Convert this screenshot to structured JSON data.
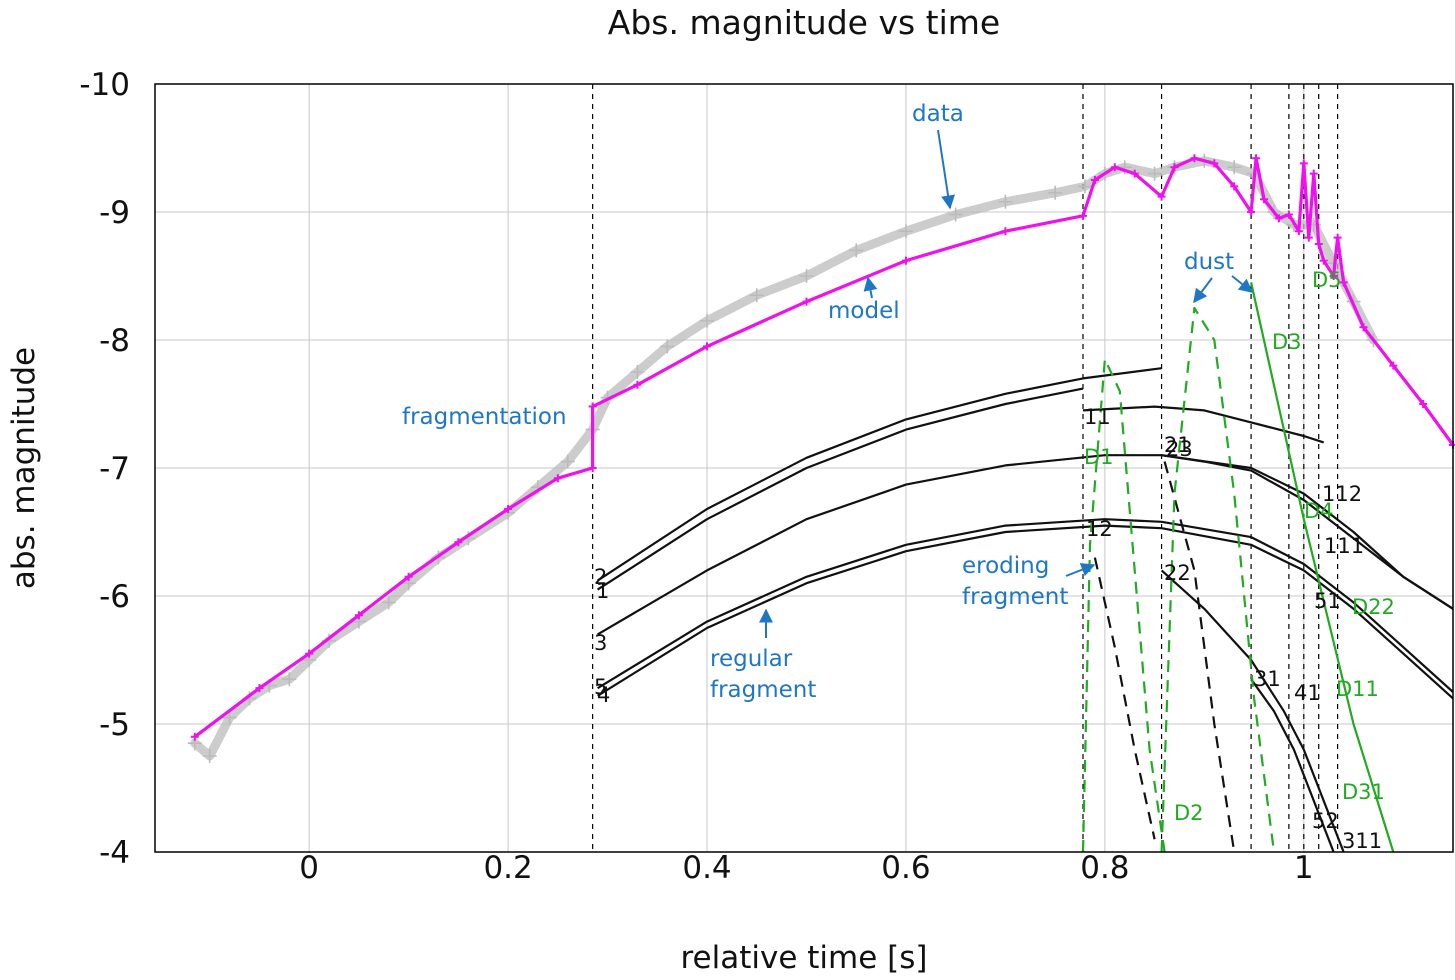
{
  "chart_data": {
    "type": "line",
    "title": "Abs. magnitude vs time",
    "xlabel": "relative time [s]",
    "ylabel": "abs. magnitude",
    "xlim": [
      -0.155,
      1.15
    ],
    "ylim": [
      -4,
      -10
    ],
    "y_inverted": true,
    "grid": true,
    "xticks": [
      0,
      0.2,
      0.4,
      0.6,
      0.8,
      1
    ],
    "xtick_labels": [
      "0",
      "0.2",
      "0.4",
      "0.6",
      "0.8",
      "1"
    ],
    "yticks": [
      -4,
      -5,
      -6,
      -7,
      -8,
      -9,
      -10
    ],
    "ytick_labels": [
      "-4",
      "-5",
      "-6",
      "-7",
      "-8",
      "-9",
      "-10"
    ],
    "fragmentation_times": [
      0.285,
      0.778,
      0.857,
      0.947,
      0.985,
      1.0,
      1.015,
      1.034
    ],
    "series": [
      {
        "role": "data",
        "color": "#bbbbbb",
        "style": "plus-markers",
        "x": [
          -0.115,
          -0.1,
          -0.08,
          -0.06,
          -0.04,
          -0.02,
          0.0,
          0.02,
          0.05,
          0.08,
          0.1,
          0.13,
          0.16,
          0.2,
          0.23,
          0.26,
          0.285,
          0.3,
          0.33,
          0.36,
          0.4,
          0.45,
          0.5,
          0.55,
          0.6,
          0.65,
          0.7,
          0.75,
          0.78,
          0.8,
          0.82,
          0.85,
          0.87,
          0.9,
          0.93,
          0.95,
          0.97,
          0.99,
          1.01,
          1.03,
          1.05,
          1.07
        ],
        "y": [
          -4.85,
          -4.75,
          -5.05,
          -5.2,
          -5.3,
          -5.35,
          -5.5,
          -5.65,
          -5.8,
          -5.95,
          -6.1,
          -6.3,
          -6.45,
          -6.65,
          -6.85,
          -7.05,
          -7.3,
          -7.55,
          -7.75,
          -7.95,
          -8.15,
          -8.35,
          -8.5,
          -8.7,
          -8.85,
          -8.98,
          -9.08,
          -9.15,
          -9.2,
          -9.3,
          -9.35,
          -9.3,
          -9.35,
          -9.4,
          -9.35,
          -9.3,
          -9.0,
          -8.9,
          -8.9,
          -8.6,
          -8.3,
          -8.0
        ]
      },
      {
        "role": "model",
        "color": "#ee11ee",
        "x": [
          -0.115,
          -0.05,
          0.0,
          0.05,
          0.1,
          0.15,
          0.2,
          0.25,
          0.285,
          0.285,
          0.33,
          0.4,
          0.5,
          0.6,
          0.7,
          0.778,
          0.79,
          0.81,
          0.83,
          0.857,
          0.87,
          0.89,
          0.91,
          0.93,
          0.947,
          0.952,
          0.96,
          0.975,
          0.985,
          0.995,
          1.0,
          1.005,
          1.01,
          1.015,
          1.02,
          1.03,
          1.034,
          1.04,
          1.06,
          1.09,
          1.12,
          1.15
        ],
        "y": [
          -4.9,
          -5.28,
          -5.55,
          -5.85,
          -6.15,
          -6.42,
          -6.68,
          -6.92,
          -7.0,
          -7.48,
          -7.65,
          -7.95,
          -8.3,
          -8.62,
          -8.85,
          -8.97,
          -9.25,
          -9.35,
          -9.3,
          -9.12,
          -9.35,
          -9.42,
          -9.38,
          -9.2,
          -9.0,
          -9.42,
          -9.1,
          -8.95,
          -8.98,
          -8.85,
          -9.38,
          -8.8,
          -9.3,
          -8.75,
          -8.62,
          -8.5,
          -8.8,
          -8.45,
          -8.1,
          -7.8,
          -7.5,
          -7.18
        ]
      },
      {
        "role": "fragment-1",
        "color": "#111111",
        "x": [
          0.29,
          0.4,
          0.5,
          0.6,
          0.7,
          0.778
        ],
        "y": [
          -6.05,
          -6.6,
          -7.0,
          -7.3,
          -7.5,
          -7.62
        ]
      },
      {
        "role": "fragment-2",
        "color": "#111111",
        "x": [
          0.29,
          0.4,
          0.5,
          0.6,
          0.7,
          0.778,
          0.857
        ],
        "y": [
          -6.12,
          -6.68,
          -7.08,
          -7.38,
          -7.58,
          -7.7,
          -7.78
        ]
      },
      {
        "role": "fragment-3",
        "color": "#111111",
        "x": [
          0.29,
          0.4,
          0.5,
          0.6,
          0.7,
          0.8,
          0.857,
          0.947,
          1.0,
          1.05,
          1.1,
          1.15
        ],
        "y": [
          -5.7,
          -6.2,
          -6.6,
          -6.87,
          -7.02,
          -7.1,
          -7.1,
          -7.0,
          -6.8,
          -6.5,
          -6.15,
          -5.9
        ]
      },
      {
        "role": "fragment-4",
        "color": "#111111",
        "x": [
          0.29,
          0.4,
          0.5,
          0.6,
          0.7,
          0.8,
          0.857,
          0.947,
          1.0,
          1.05,
          1.1,
          1.15
        ],
        "y": [
          -5.22,
          -5.75,
          -6.1,
          -6.35,
          -6.5,
          -6.55,
          -6.53,
          -6.4,
          -6.2,
          -5.9,
          -5.55,
          -5.2
        ]
      },
      {
        "role": "fragment-5",
        "color": "#111111",
        "x": [
          0.29,
          0.4,
          0.5,
          0.6,
          0.7,
          0.8,
          0.857,
          0.947,
          1.0,
          1.05,
          1.1,
          1.15
        ],
        "y": [
          -5.28,
          -5.8,
          -6.15,
          -6.4,
          -6.55,
          -6.6,
          -6.58,
          -6.46,
          -6.25,
          -5.95,
          -5.6,
          -5.25
        ]
      },
      {
        "role": "fragment-11",
        "color": "#111111",
        "x": [
          0.778,
          0.85,
          0.9,
          0.95,
          1.0,
          1.02
        ],
        "y": [
          -7.45,
          -7.48,
          -7.45,
          -7.35,
          -7.25,
          -7.2
        ]
      },
      {
        "role": "fragment-21",
        "color": "#111111",
        "x": [
          0.857,
          0.9,
          0.947,
          1.0,
          1.05,
          1.1,
          1.15
        ],
        "y": [
          -7.1,
          -7.05,
          -6.98,
          -6.75,
          -6.45,
          -6.15,
          -5.9
        ]
      },
      {
        "role": "fragment-22",
        "color": "#111111",
        "x": [
          0.857,
          0.9,
          0.947,
          0.98,
          1.0,
          1.02,
          1.04
        ],
        "y": [
          -6.2,
          -5.9,
          -5.5,
          -5.1,
          -4.8,
          -4.4,
          -4.0
        ]
      },
      {
        "role": "fragment-31",
        "color": "#111111",
        "x": [
          0.947,
          0.97,
          0.99,
          1.01,
          1.03
        ],
        "y": [
          -5.35,
          -5.1,
          -4.8,
          -4.4,
          -4.0
        ]
      },
      {
        "role": "eroding-fragment-12",
        "color": "#111111",
        "dashed": true,
        "x": [
          0.79,
          0.81,
          0.83,
          0.85
        ],
        "y": [
          -6.3,
          -5.6,
          -4.8,
          -4.1
        ]
      },
      {
        "role": "eroding-fragment-23",
        "color": "#111111",
        "dashed": true,
        "x": [
          0.86,
          0.89,
          0.91,
          0.93
        ],
        "y": [
          -7.05,
          -6.2,
          -5.0,
          -4.0
        ]
      },
      {
        "role": "dust-D1",
        "color": "#22aa22",
        "dashed": true,
        "x": [
          0.778,
          0.785,
          0.8,
          0.815,
          0.83,
          0.845,
          0.86
        ],
        "y": [
          -4.0,
          -6.4,
          -7.85,
          -7.6,
          -6.2,
          -4.8,
          -4.0
        ]
      },
      {
        "role": "dust-D2",
        "color": "#22aa22",
        "dashed": true,
        "x": [
          0.857,
          0.87,
          0.89,
          0.91,
          0.93,
          0.95,
          0.97
        ],
        "y": [
          -4.0,
          -6.8,
          -8.25,
          -8.0,
          -6.8,
          -5.2,
          -4.0
        ]
      },
      {
        "role": "dust-D3",
        "color": "#22aa22",
        "x": [
          0.947,
          1.0,
          1.05,
          1.09
        ],
        "y": [
          -8.45,
          -6.6,
          -5.0,
          -4.0
        ]
      }
    ],
    "annotations": [
      "data",
      "model",
      "fragmentation",
      "dust",
      "eroding fragment",
      "regular fragment"
    ],
    "fragment_labels": [
      "1",
      "2",
      "3",
      "4",
      "5",
      "11",
      "12",
      "21",
      "22",
      "23",
      "31",
      "41",
      "51",
      "52",
      "111",
      "112",
      "311"
    ],
    "dust_labels": [
      "D1",
      "D2",
      "D3",
      "D4",
      "D5",
      "D11",
      "D22",
      "D31"
    ]
  },
  "annotation_text": {
    "data": "data",
    "model": "model",
    "fragmentation": "fragmentation",
    "dust": "dust",
    "eroding_1": "eroding",
    "eroding_2": "fragment",
    "regular_1": "regular",
    "regular_2": "fragment"
  },
  "fragment_label_text": {
    "f1": "1",
    "f2": "2",
    "f3": "3",
    "f4": "4",
    "f5": "5",
    "f11": "11",
    "f12": "12",
    "f21": "21",
    "f23": "23",
    "f22": "22",
    "f31": "31",
    "f41": "41",
    "f51": "51",
    "f52": "52",
    "f111": "111",
    "f112": "112",
    "f311": "311"
  },
  "dust_label_text": {
    "d1": "D1",
    "d2": "D2",
    "d3": "D3",
    "d4": "D4",
    "d5": "D5",
    "d11": "D11",
    "d22": "D22",
    "d31": "D31"
  }
}
